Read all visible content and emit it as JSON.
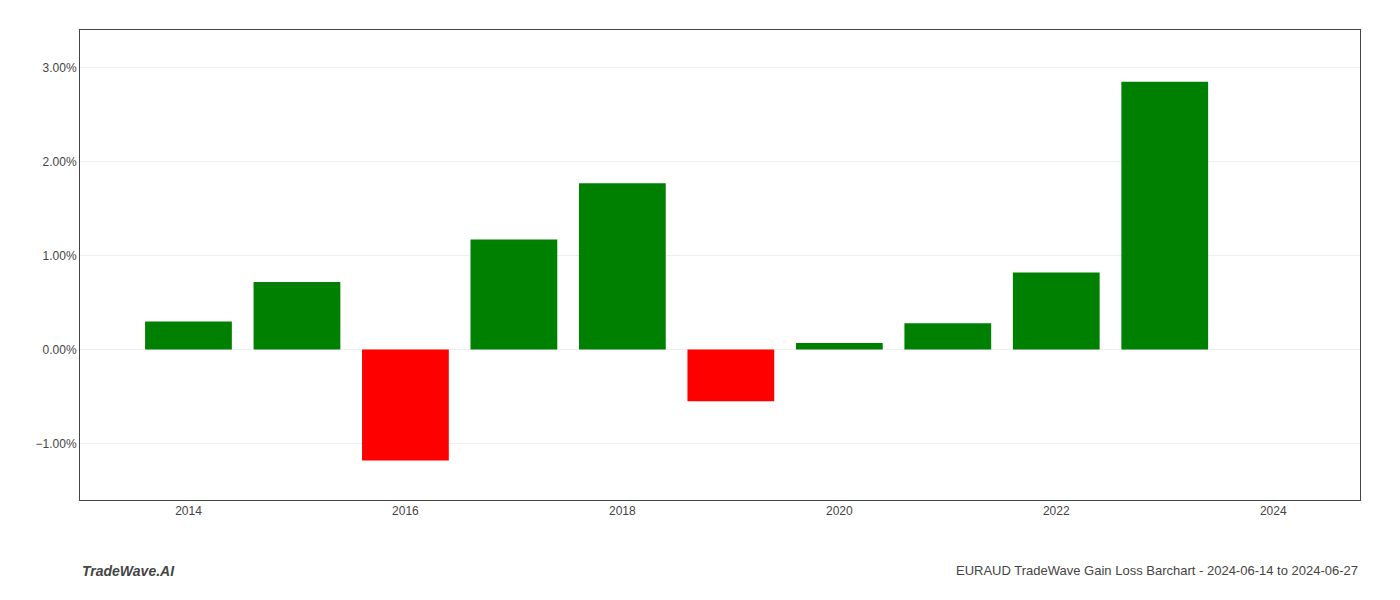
{
  "chart_data": {
    "type": "bar",
    "x": [
      2014,
      2015,
      2016,
      2017,
      2018,
      2019,
      2020,
      2021,
      2022,
      2023
    ],
    "values": [
      0.003,
      0.0072,
      -0.0118,
      0.0117,
      0.0177,
      -0.0055,
      0.0007,
      0.0028,
      0.0082,
      0.0285
    ],
    "colors": [
      "#008000",
      "#008000",
      "#ff0000",
      "#008000",
      "#008000",
      "#ff0000",
      "#008000",
      "#008000",
      "#008000",
      "#008000"
    ],
    "xlim": [
      2013.0,
      2024.8
    ],
    "xticks": [
      2014,
      2016,
      2018,
      2020,
      2022,
      2024
    ],
    "ylim": [
      -0.016,
      0.034
    ],
    "yticks": [
      {
        "value": -0.01,
        "label": "−1.00%"
      },
      {
        "value": 0.0,
        "label": "0.00%"
      },
      {
        "value": 0.01,
        "label": "1.00%"
      },
      {
        "value": 0.02,
        "label": "2.00%"
      },
      {
        "value": 0.03,
        "label": "3.00%"
      }
    ],
    "grid": "y",
    "annotations": [
      "TradeWave.AI",
      "EURAUD TradeWave Gain Loss Barchart - 2024-06-14 to 2024-06-27"
    ]
  }
}
